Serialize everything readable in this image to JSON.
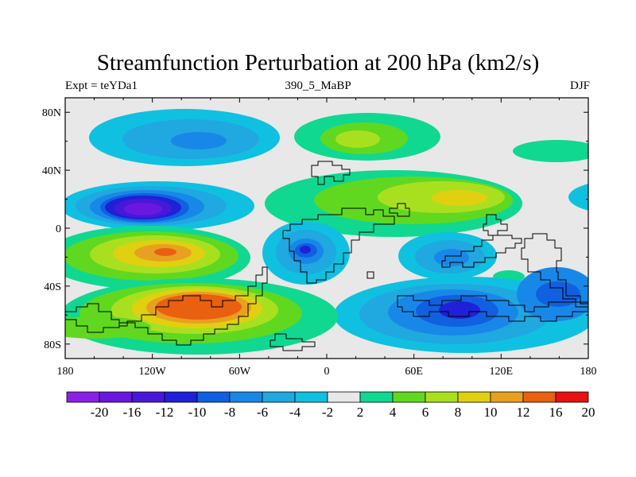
{
  "title": "Streamfunction Perturbation at 200 hPa (km2/s)",
  "subtitle_left": "Expt = teYDa1",
  "subtitle_center": "390_5_MaBP",
  "subtitle_right": "DJF",
  "map": {
    "projection": "cylindrical equidistant",
    "lon_range": [
      -180,
      180
    ],
    "lat_range": [
      -90,
      90
    ],
    "background_color": "#e8e8e8",
    "lon_ticks": [
      {
        "value": -180,
        "label": "180"
      },
      {
        "value": -120,
        "label": "120W"
      },
      {
        "value": -60,
        "label": "60W"
      },
      {
        "value": 0,
        "label": "0"
      },
      {
        "value": 60,
        "label": "60E"
      },
      {
        "value": 120,
        "label": "120E"
      },
      {
        "value": 180,
        "label": "180"
      }
    ],
    "lat_ticks": [
      {
        "value": 80,
        "label": "80N"
      },
      {
        "value": 40,
        "label": "40N"
      },
      {
        "value": 0,
        "label": "0"
      },
      {
        "value": -40,
        "label": "40S"
      },
      {
        "value": -80,
        "label": "80S"
      }
    ]
  },
  "colorbar": {
    "levels": [
      "-20",
      "-16",
      "-12",
      "-10",
      "-8",
      "-6",
      "-4",
      "-2",
      "2",
      "4",
      "6",
      "8",
      "10",
      "12",
      "16",
      "20"
    ],
    "colors": [
      "#8b20e8",
      "#6a18e0",
      "#4818d8",
      "#2020d8",
      "#1060e0",
      "#1888e8",
      "#20a8e0",
      "#10c0e0",
      "#e8e8e8",
      "#10d890",
      "#60d820",
      "#a8e020",
      "#e0d010",
      "#e8a020",
      "#e86010",
      "#e81010"
    ]
  },
  "chart_data": {
    "type": "heatmap",
    "title": "Streamfunction Perturbation at 200 hPa (km2/s)",
    "units": "km2/s",
    "features": [
      {
        "lon": -110,
        "lat": 60,
        "value": -8
      },
      {
        "lon": 30,
        "lat": 63,
        "value": 8
      },
      {
        "lon": 165,
        "lat": 55,
        "value": 4
      },
      {
        "lon": -125,
        "lat": 15,
        "value": -20
      },
      {
        "lon": 85,
        "lat": 22,
        "value": 10
      },
      {
        "lon": 15,
        "lat": 32,
        "value": 6
      },
      {
        "lon": -115,
        "lat": -16,
        "value": 16
      },
      {
        "lon": -102,
        "lat": -55,
        "value": 16
      },
      {
        "lon": -160,
        "lat": -62,
        "value": 4
      },
      {
        "lon": -12,
        "lat": -16,
        "value": -12
      },
      {
        "lon": 85,
        "lat": -20,
        "value": -8
      },
      {
        "lon": 90,
        "lat": -55,
        "value": -12
      },
      {
        "lon": 155,
        "lat": -45,
        "value": -10
      },
      {
        "lon": 120,
        "lat": -35,
        "value": 4
      }
    ]
  }
}
